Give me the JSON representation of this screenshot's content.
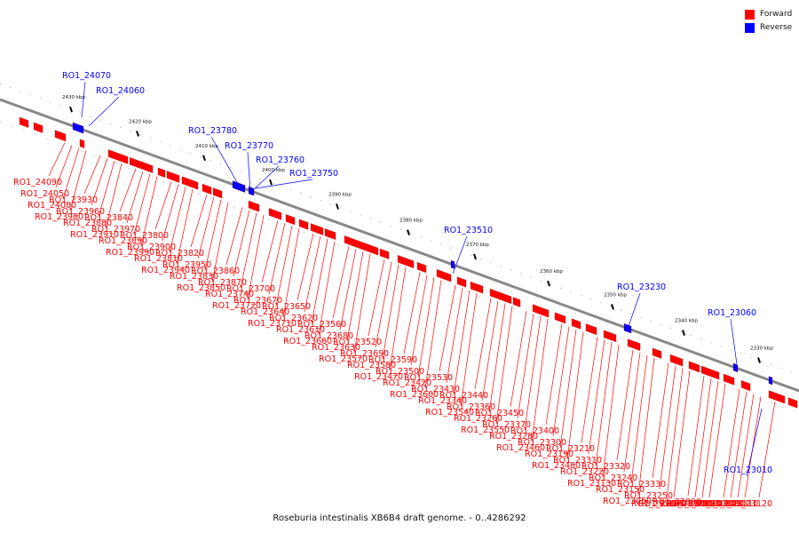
{
  "legend": {
    "forward_label": "Forward",
    "reverse_label": "Reverse",
    "forward_color": "#ff0000",
    "reverse_color": "#0000ff"
  },
  "caption": "Roseburia intestinalis XB6B4 draft genome. - 0..4286292",
  "colors": {
    "backbone": "#888888",
    "scale": "#000000"
  },
  "scale_labels": [
    "2430 kbp",
    "2420 kbp",
    "2410 kbp",
    "2400 kbp",
    "2390 kbp",
    "2380 kbp",
    "2370 kbp",
    "2360 kbp",
    "2350 kbp",
    "2340 kbp",
    "2330 kbp"
  ],
  "forward_labels": [
    "RO1_24090",
    "RO1_24050",
    "RO1_24000",
    "RO1_23980",
    "RO1_23930",
    "RO1_23960",
    "RO1_23880",
    "RO1_23910",
    "RO1_23840",
    "RO1_23970",
    "RO1_23890",
    "RO1_23990",
    "RO1_23800",
    "RO1_23900",
    "RO1_23810",
    "RO1_23940",
    "RO1_23820",
    "RO1_23950",
    "RO1_23830",
    "RO1_23850",
    "RO1_23860",
    "RO1_23870",
    "RO1_23740",
    "RO1_23720",
    "RO1_23700",
    "RO1_23670",
    "RO1_23640",
    "RO1_23710",
    "RO1_23650",
    "RO1_23620",
    "RO1_23610",
    "RO1_23660",
    "RO1_23560",
    "RO1_23680",
    "RO1_23630",
    "RO1_23570",
    "RO1_23520",
    "RO1_23690",
    "RO1_23580",
    "RO1_23470",
    "RO1_23590",
    "RO1_23500",
    "RO1_23420",
    "RO1_23600",
    "RO1_23530",
    "RO1_23430",
    "RO1_23340",
    "RO1_23540",
    "RO1_23440",
    "RO1_23360",
    "RO1_23260",
    "RO1_23550",
    "RO1_23450",
    "RO1_23370",
    "RO1_23280",
    "RO1_23460",
    "RO1_23400",
    "RO1_23300",
    "RO1_23190",
    "RO1_23480",
    "RO1_23210",
    "RO1_23310",
    "RO1_23220",
    "RO1_23130",
    "RO1_23320",
    "RO1_23240",
    "RO1_23150",
    "RO1_23050",
    "RO1_23330",
    "RO1_23250",
    "RO1_23160",
    "RO1_23070",
    "RO1_22990",
    "RO1_23170",
    "RO1_23080",
    "RO1_23000",
    "RO1_23090",
    "RO1_23020",
    "RO1_23100",
    "RO1_23110",
    "RO1_23120"
  ],
  "reverse_labels": [
    "RO1_24070",
    "RO1_24060",
    "RO1_23780",
    "RO1_23770",
    "RO1_23760",
    "RO1_23750",
    "RO1_23510",
    "RO1_23230",
    "RO1_23060",
    "RO1_23010"
  ]
}
